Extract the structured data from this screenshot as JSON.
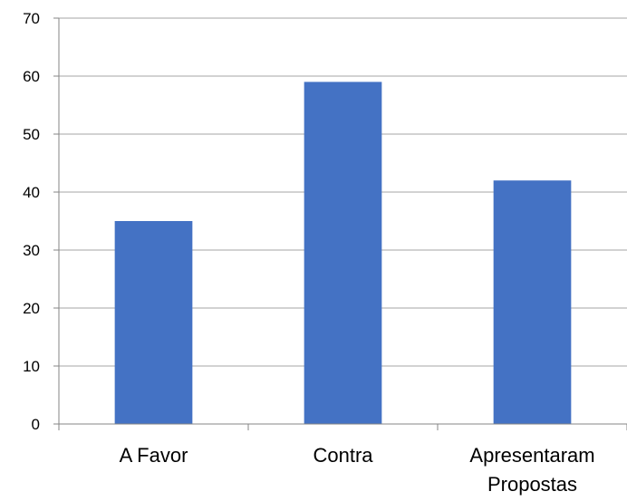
{
  "chart_data": {
    "type": "bar",
    "title": "",
    "xlabel": "",
    "ylabel": "",
    "categories": [
      [
        "A Favor"
      ],
      [
        "Contra"
      ],
      [
        "Apresentaram",
        "Propostas"
      ]
    ],
    "category_names": [
      "A Favor",
      "Contra",
      "Apresentaram Propostas"
    ],
    "values": [
      35,
      59,
      42
    ],
    "ylim": [
      0,
      70
    ],
    "yticks": [
      "0",
      "10",
      "20",
      "30",
      "40",
      "50",
      "60",
      "70"
    ],
    "ytick_values": [
      0,
      10,
      20,
      30,
      40,
      50,
      60,
      70
    ],
    "grid": "horizontal",
    "legend": "none",
    "bar_color": "#4472C4",
    "grid_color": "#A6A6A6",
    "axis_color": "#868686"
  }
}
